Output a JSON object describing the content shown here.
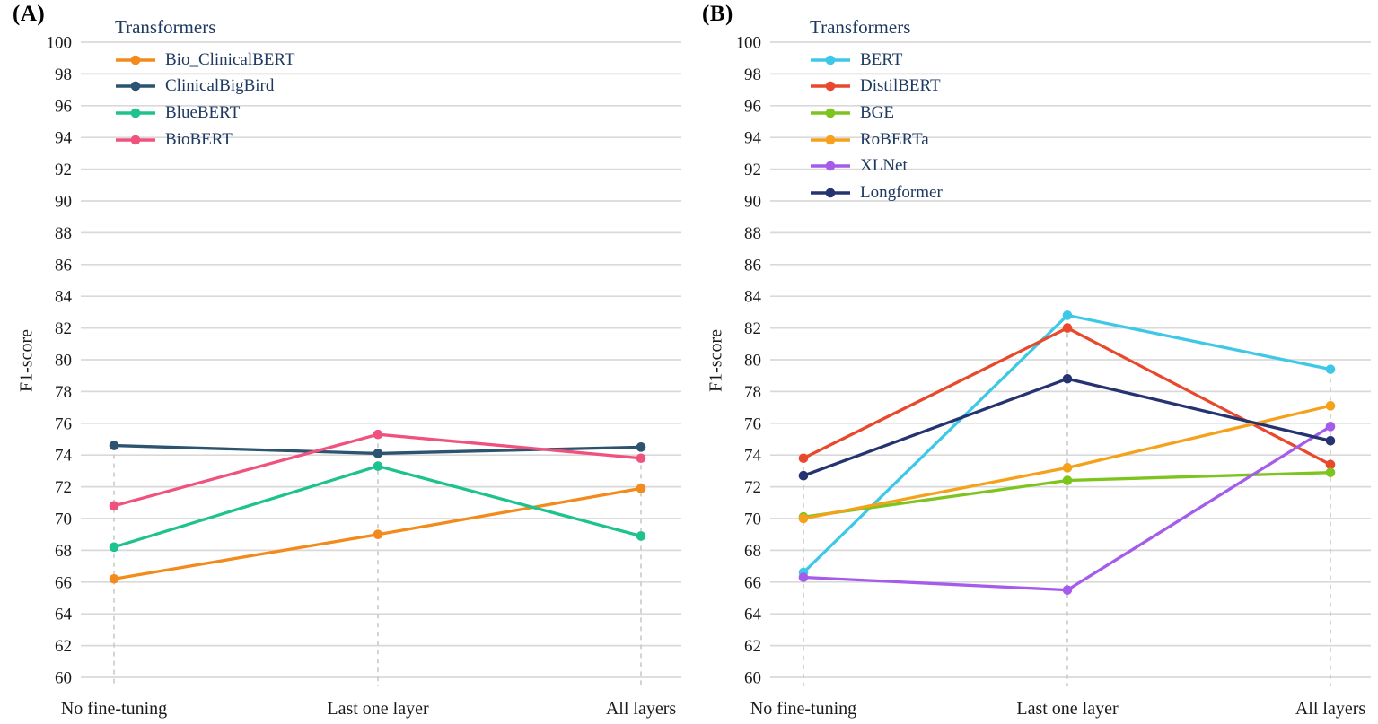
{
  "figure_title": "",
  "style": {
    "background": "#ffffff",
    "text_color": "#1a1a1a",
    "legend_text_color": "#1f3a60",
    "gridline_color": "#d9d9d9",
    "dashed_guide_color": "#c9c9c9"
  },
  "chart_data": [
    {
      "type": "line",
      "panel_label": "(A)",
      "legend_title": "Transformers",
      "legend_position": "top-left",
      "ylabel": "F1-score",
      "xlabel": "",
      "ylim": [
        60,
        100
      ],
      "ytick_step": 2,
      "grid": true,
      "categories": [
        "No fine-tuning",
        "Last one layer",
        "All layers"
      ],
      "series": [
        {
          "name": "Bio_ClinicalBERT",
          "color": "#F28A1C",
          "values": [
            66.2,
            69.0,
            71.9
          ]
        },
        {
          "name": "ClinicalBigBird",
          "color": "#2C536F",
          "values": [
            74.6,
            74.1,
            74.5
          ]
        },
        {
          "name": "BlueBERT",
          "color": "#1EC28E",
          "values": [
            68.2,
            73.3,
            68.9
          ]
        },
        {
          "name": "BioBERT",
          "color": "#F0527E",
          "values": [
            70.8,
            75.3,
            73.8
          ]
        }
      ]
    },
    {
      "type": "line",
      "panel_label": "(B)",
      "legend_title": "Transformers",
      "legend_position": "top-left",
      "ylabel": "F1-score",
      "xlabel": "",
      "ylim": [
        60,
        100
      ],
      "ytick_step": 2,
      "grid": true,
      "categories": [
        "No fine-tuning",
        "Last one layer",
        "All layers"
      ],
      "series": [
        {
          "name": "BERT",
          "color": "#3EC8E8",
          "values": [
            66.6,
            82.8,
            79.4
          ]
        },
        {
          "name": "DistilBERT",
          "color": "#E8492D",
          "values": [
            73.8,
            82.0,
            73.4
          ]
        },
        {
          "name": "BGE",
          "color": "#7DC41F",
          "values": [
            70.1,
            72.4,
            72.9
          ]
        },
        {
          "name": "RoBERTa",
          "color": "#F5A11C",
          "values": [
            70.0,
            73.2,
            77.1
          ]
        },
        {
          "name": "XLNet",
          "color": "#A55CEA",
          "values": [
            66.3,
            65.5,
            75.8
          ]
        },
        {
          "name": "Longformer",
          "color": "#253370",
          "values": [
            72.7,
            78.8,
            74.9
          ]
        }
      ]
    }
  ]
}
